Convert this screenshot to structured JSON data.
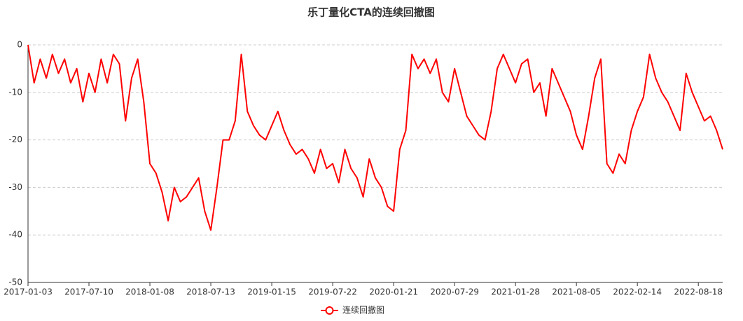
{
  "chart_data": {
    "type": "line",
    "title": "乐丁量化CTA的连续回撤图",
    "categories": [
      "2017-01-03",
      null,
      null,
      null,
      null,
      null,
      null,
      null,
      null,
      null,
      "2017-07-10",
      null,
      null,
      null,
      null,
      null,
      null,
      null,
      null,
      null,
      "2018-01-08",
      null,
      null,
      null,
      null,
      null,
      null,
      null,
      null,
      null,
      "2018-07-13",
      null,
      null,
      null,
      null,
      null,
      null,
      null,
      null,
      null,
      "2019-01-15",
      null,
      null,
      null,
      null,
      null,
      null,
      null,
      null,
      null,
      "2019-07-22",
      null,
      null,
      null,
      null,
      null,
      null,
      null,
      null,
      null,
      "2020-01-21",
      null,
      null,
      null,
      null,
      null,
      null,
      null,
      null,
      null,
      "2020-07-29",
      null,
      null,
      null,
      null,
      null,
      null,
      null,
      null,
      null,
      "2021-01-28",
      null,
      null,
      null,
      null,
      null,
      null,
      null,
      null,
      null,
      "2021-08-05",
      null,
      null,
      null,
      null,
      null,
      null,
      null,
      null,
      null,
      "2022-02-14",
      null,
      null,
      null,
      null,
      null,
      null,
      null,
      null,
      null,
      "2022-08-18",
      null,
      null,
      null,
      null
    ],
    "series": [
      {
        "name": "连续回撤图",
        "color": "#ff0000",
        "values": [
          0,
          -8,
          -3,
          -7,
          -2,
          -6,
          -3,
          -8,
          -5,
          -12,
          -6,
          -10,
          -3,
          -8,
          -2,
          -4,
          -16,
          -7,
          -3,
          -12,
          -25,
          -27,
          -31,
          -37,
          -30,
          -33,
          -32,
          -30,
          -28,
          -35,
          -39,
          -30,
          -20,
          -20,
          -16,
          -2,
          -14,
          -17,
          -19,
          -20,
          -17,
          -14,
          -18,
          -21,
          -23,
          -22,
          -24,
          -27,
          -22,
          -26,
          -25,
          -29,
          -22,
          -26,
          -28,
          -32,
          -24,
          -28,
          -30,
          -34,
          -35,
          -22,
          -18,
          -2,
          -5,
          -3,
          -6,
          -3,
          -10,
          -12,
          -5,
          -10,
          -15,
          -17,
          -19,
          -20,
          -14,
          -5,
          -2,
          -5,
          -8,
          -4,
          -3,
          -10,
          -8,
          -15,
          -5,
          -8,
          -11,
          -14,
          -19,
          -22,
          -15,
          -7,
          -3,
          -25,
          -27,
          -23,
          -25,
          -18,
          -14,
          -11,
          -2,
          -7,
          -10,
          -12,
          -15,
          -18,
          -6,
          -10,
          -13,
          -16,
          -15,
          -18,
          -22
        ]
      }
    ],
    "ylim": [
      -50,
      0
    ],
    "yticks": [
      0,
      -10,
      -20,
      -30,
      -40,
      -50
    ],
    "grid": true
  }
}
